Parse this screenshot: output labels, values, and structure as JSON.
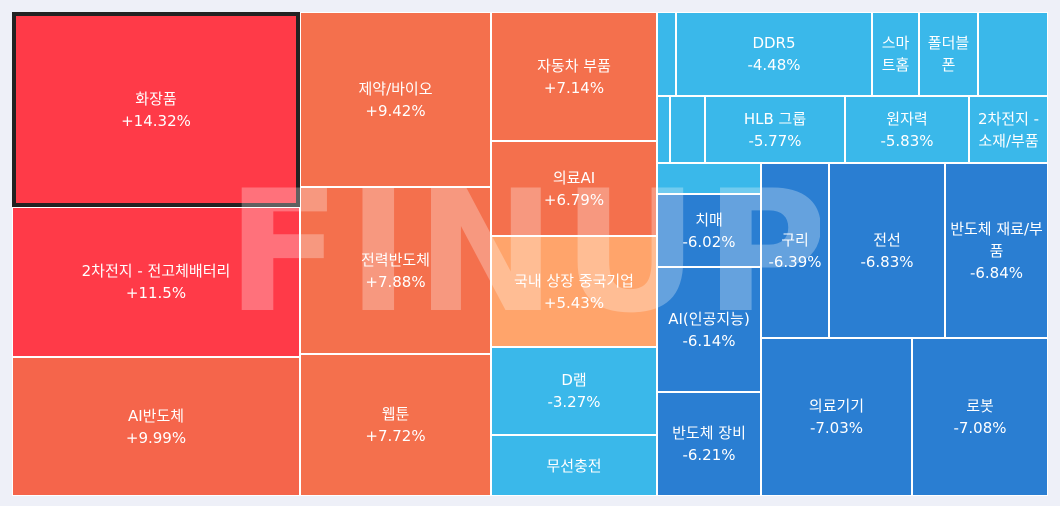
{
  "watermark": "FINUP",
  "colors": {
    "up_strong": "#ff3a48",
    "up": "#f5654b",
    "up_mid": "#f4704d",
    "up_light": "#ffa46b",
    "down_light": "#3ab8ea",
    "down": "#2a7ed2",
    "border": "#ffffff",
    "selected_border": "#222222"
  },
  "chart_data": {
    "type": "treemap",
    "unit": "%",
    "items": [
      {
        "name": "화장품",
        "change": "+14.32%",
        "value": 14.32,
        "selected": true
      },
      {
        "name": "2차전지 - 전고체배터리",
        "change": "+11.5%",
        "value": 11.5
      },
      {
        "name": "AI반도체",
        "change": "+9.99%",
        "value": 9.99
      },
      {
        "name": "제약/바이오",
        "change": "+9.42%",
        "value": 9.42
      },
      {
        "name": "전력반도체",
        "change": "+7.88%",
        "value": 7.88
      },
      {
        "name": "웹툰",
        "change": "+7.72%",
        "value": 7.72
      },
      {
        "name": "자동차 부품",
        "change": "+7.14%",
        "value": 7.14
      },
      {
        "name": "의료AI",
        "change": "+6.79%",
        "value": 6.79
      },
      {
        "name": "국내 상장 중국기업",
        "change": "+5.43%",
        "value": 5.43
      },
      {
        "name": "D램",
        "change": "-3.27%",
        "value": -3.27
      },
      {
        "name": "무선충전",
        "change": "",
        "value": null
      },
      {
        "name": "",
        "change": "",
        "value": null
      },
      {
        "name": "DDR5",
        "change": "-4.48%",
        "value": -4.48
      },
      {
        "name": "스마트홈",
        "change": "",
        "value": null
      },
      {
        "name": "폴더블폰",
        "change": "",
        "value": null
      },
      {
        "name": "",
        "change": "",
        "value": null
      },
      {
        "name": "",
        "change": "",
        "value": null
      },
      {
        "name": "",
        "change": "",
        "value": null
      },
      {
        "name": "HLB 그룹",
        "change": "-5.77%",
        "value": -5.77
      },
      {
        "name": "원자력",
        "change": "-5.83%",
        "value": -5.83
      },
      {
        "name": "2차전지 - 소재/부품",
        "change": "",
        "value": null
      },
      {
        "name": "",
        "change": "",
        "value": null
      },
      {
        "name": "치매",
        "change": "-6.02%",
        "value": -6.02
      },
      {
        "name": "AI(인공지능)",
        "change": "-6.14%",
        "value": -6.14
      },
      {
        "name": "반도체 장비",
        "change": "-6.21%",
        "value": -6.21
      },
      {
        "name": "구리",
        "change": "-6.39%",
        "value": -6.39
      },
      {
        "name": "전선",
        "change": "-6.83%",
        "value": -6.83
      },
      {
        "name": "반도체 재료/부품",
        "change": "-6.84%",
        "value": -6.84
      },
      {
        "name": "의료기기",
        "change": "-7.03%",
        "value": -7.03
      },
      {
        "name": "로봇",
        "change": "-7.08%",
        "value": -7.08
      }
    ]
  }
}
